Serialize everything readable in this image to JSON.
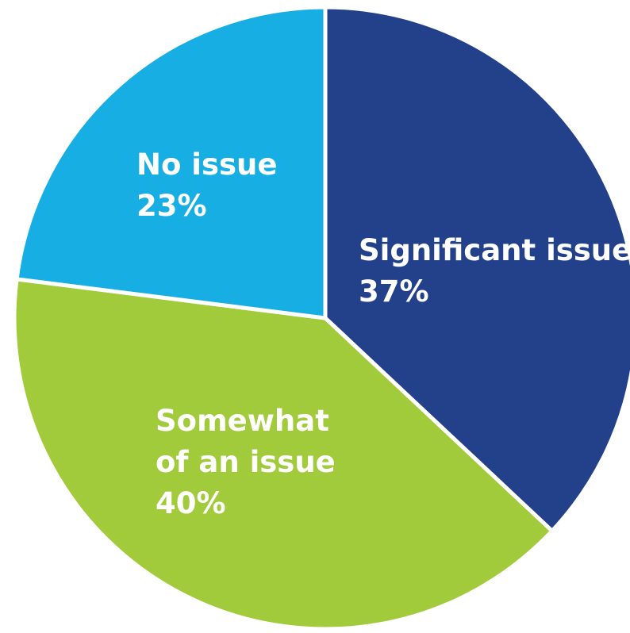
{
  "chart_data": {
    "type": "pie",
    "slices": [
      {
        "label_lines": [
          "Significant issue"
        ],
        "percent_label": "37%",
        "value": 37,
        "color": "#22418a"
      },
      {
        "label_lines": [
          "Somewhat",
          "of an issue"
        ],
        "percent_label": "40%",
        "value": 40,
        "color": "#a1cb3a"
      },
      {
        "label_lines": [
          "No issue"
        ],
        "percent_label": "23%",
        "value": 23,
        "color": "#17aee3"
      }
    ],
    "start_angle_deg": 0,
    "direction": "clockwise"
  }
}
